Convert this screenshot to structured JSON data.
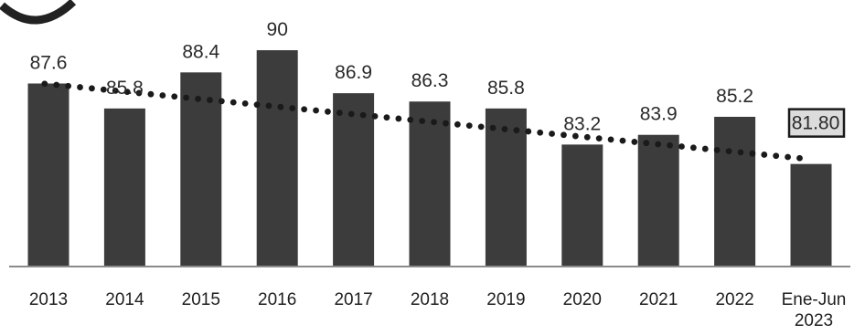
{
  "chart_data": {
    "type": "bar",
    "categories": [
      "2013",
      "2014",
      "2015",
      "2016",
      "2017",
      "2018",
      "2019",
      "2020",
      "2021",
      "2022",
      "Ene-Jun\n2023"
    ],
    "values": [
      87.6,
      85.8,
      88.4,
      90,
      86.9,
      86.3,
      85.8,
      83.2,
      83.9,
      85.2,
      81.8
    ],
    "value_labels": [
      "87.6",
      "85.8",
      "88.4",
      "90",
      "86.9",
      "86.3",
      "85.8",
      "83.2",
      "83.9",
      "85.2",
      "81.80"
    ],
    "trendline": "dotted linear trend",
    "highlighted_category": "Ene-Jun\n2023",
    "title": "",
    "xlabel": "",
    "ylabel": "",
    "ylim": [
      78,
      90
    ],
    "grid": false,
    "legend": "none",
    "colors": {
      "bar": "#3c3c3c",
      "trend": "#1a1a1a",
      "highlight_fill": "#dcdcdc"
    }
  }
}
